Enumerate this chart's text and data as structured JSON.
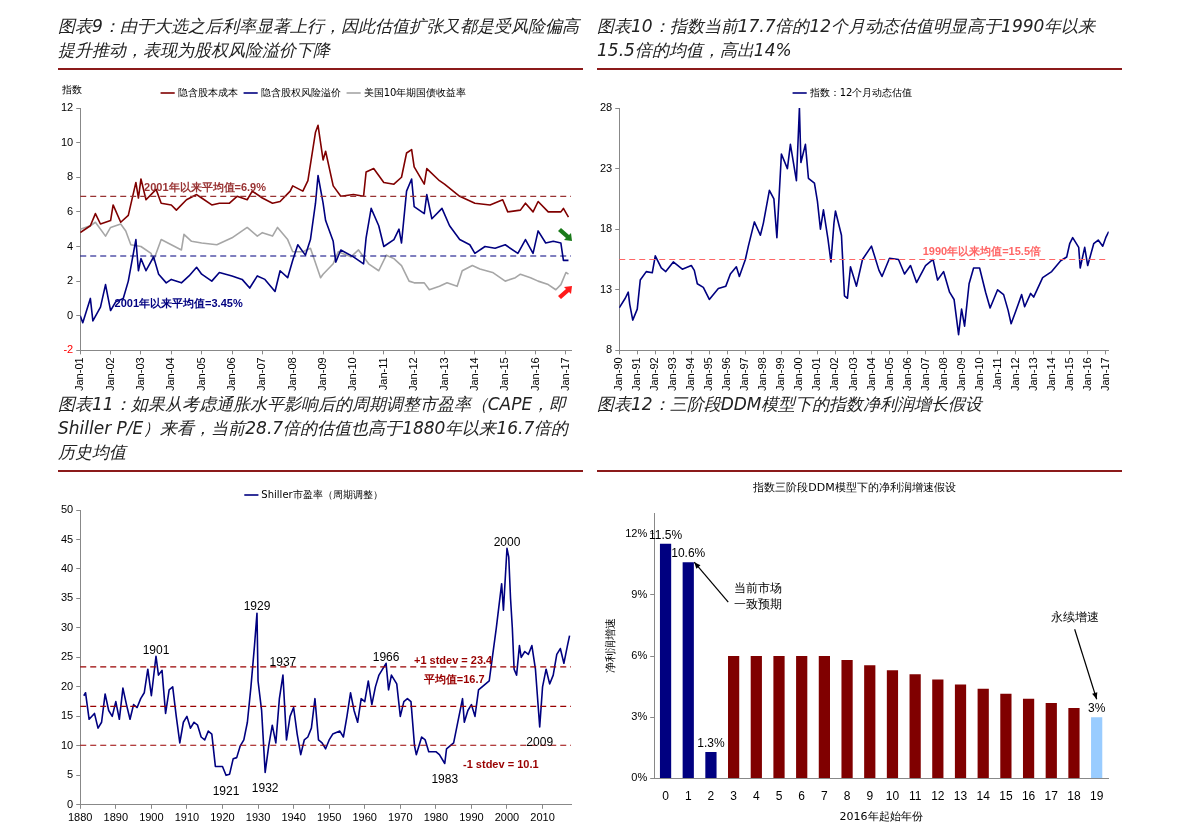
{
  "chart_data": [
    {
      "type": "line",
      "title": "图表9：由于大选之后利率显著上行，因此估值扩张又都是受风险偏高提升推动，表现为股权风险溢价下降",
      "ylabel": "指数",
      "legend": "top",
      "marker": "none",
      "xlim": [
        "2001-01",
        "2017-03"
      ],
      "xticks": [
        {
          "value": "2001-01",
          "label": "Jan-01"
        },
        {
          "value": "2002-01",
          "label": "Jan-02"
        },
        {
          "value": "2003-01",
          "label": "Jan-03"
        },
        {
          "value": "2004-01",
          "label": "Jan-04"
        },
        {
          "value": "2005-01",
          "label": "Jan-05"
        },
        {
          "value": "2006-01",
          "label": "Jan-06"
        },
        {
          "value": "2007-01",
          "label": "Jan-07"
        },
        {
          "value": "2008-01",
          "label": "Jan-08"
        },
        {
          "value": "2009-01",
          "label": "Jan-09"
        },
        {
          "value": "2010-01",
          "label": "Jan-10"
        },
        {
          "value": "2011-01",
          "label": "Jan-11"
        },
        {
          "value": "2012-01",
          "label": "Jan-12"
        },
        {
          "value": "2013-01",
          "label": "Jan-13"
        },
        {
          "value": "2014-01",
          "label": "Jan-14"
        },
        {
          "value": "2015-01",
          "label": "Jan-15"
        },
        {
          "value": "2016-01",
          "label": "Jan-16"
        },
        {
          "value": "2017-01",
          "label": "Jan-17"
        }
      ],
      "ylim": [
        -2,
        12
      ],
      "yticks": [
        -2,
        0,
        2,
        4,
        6,
        8,
        10,
        12
      ],
      "ref_lines": [
        {
          "axis": "y",
          "value": 6.9,
          "label": "2001年以来平均值=6.9%",
          "color": "#993333",
          "line_style": "dashed"
        },
        {
          "axis": "y",
          "value": 3.45,
          "label": "2001年以来平均值=3.45%",
          "color": "#000080",
          "line_style": "dashed"
        }
      ],
      "series": [
        {
          "name": "隐含股本成本",
          "color": "#800000",
          "x": [
            "2001-01",
            "2001-05",
            "2001-07",
            "2001-09",
            "2002-01",
            "2002-02",
            "2002-05",
            "2002-08",
            "2002-11",
            "2002-12",
            "2003-01",
            "2003-03",
            "2003-07",
            "2003-09",
            "2004-01",
            "2004-03",
            "2004-07",
            "2004-11",
            "2005-01",
            "2005-05",
            "2005-08",
            "2005-12",
            "2006-03",
            "2006-07",
            "2006-09",
            "2007-01",
            "2007-05",
            "2007-08",
            "2007-12",
            "2008-01",
            "2008-05",
            "2008-07",
            "2008-10",
            "2008-11",
            "2009-01",
            "2009-02",
            "2009-05",
            "2009-08",
            "2010-01",
            "2010-05",
            "2010-06",
            "2010-09",
            "2011-01",
            "2011-05",
            "2011-08",
            "2011-10",
            "2011-12",
            "2012-01",
            "2012-05",
            "2012-06",
            "2012-11",
            "2013-01",
            "2013-07",
            "2014-01",
            "2014-07",
            "2014-12",
            "2015-02",
            "2015-07",
            "2015-09",
            "2015-12",
            "2016-02",
            "2016-06",
            "2016-11",
            "2016-12",
            "2017-02"
          ],
          "values": [
            4.8,
            5.2,
            5.9,
            5.3,
            5.5,
            6.4,
            5.4,
            5.8,
            7.7,
            6.8,
            7.9,
            6.7,
            7.3,
            6.5,
            6.4,
            6.1,
            6.7,
            7.0,
            6.8,
            6.4,
            6.5,
            6.5,
            6.9,
            6.7,
            7.2,
            6.8,
            6.5,
            6.6,
            7.2,
            7.5,
            7.2,
            7.8,
            10.6,
            11.0,
            9.0,
            9.5,
            7.5,
            6.9,
            7.0,
            6.9,
            8.3,
            8.5,
            7.7,
            7.6,
            8.0,
            9.4,
            9.6,
            8.6,
            7.6,
            8.5,
            7.8,
            7.6,
            6.9,
            6.5,
            6.4,
            6.7,
            6.0,
            6.1,
            6.5,
            6.0,
            6.6,
            6.0,
            6.0,
            6.2,
            5.7
          ]
        },
        {
          "name": "隐含股权风险溢价",
          "color": "#000080",
          "x": [
            "2001-01",
            "2001-02",
            "2001-05",
            "2001-06",
            "2001-09",
            "2001-11",
            "2002-01",
            "2002-03",
            "2002-06",
            "2002-08",
            "2002-11",
            "2002-12",
            "2003-01",
            "2003-03",
            "2003-06",
            "2003-08",
            "2003-11",
            "2004-01",
            "2004-05",
            "2004-08",
            "2004-11",
            "2005-01",
            "2005-05",
            "2005-08",
            "2006-01",
            "2006-05",
            "2006-08",
            "2006-11",
            "2007-02",
            "2007-06",
            "2007-08",
            "2007-11",
            "2008-01",
            "2008-03",
            "2008-06",
            "2008-08",
            "2008-10",
            "2008-11",
            "2009-01",
            "2009-02",
            "2009-05",
            "2009-06",
            "2009-08",
            "2010-01",
            "2010-05",
            "2010-06",
            "2010-08",
            "2010-11",
            "2011-01",
            "2011-05",
            "2011-07",
            "2011-08",
            "2011-10",
            "2011-12",
            "2012-01",
            "2012-05",
            "2012-06",
            "2012-08",
            "2012-12",
            "2013-03",
            "2013-07",
            "2013-11",
            "2014-01",
            "2014-05",
            "2014-09",
            "2015-01",
            "2015-06",
            "2015-09",
            "2015-12",
            "2016-02",
            "2016-05",
            "2016-08",
            "2016-11",
            "2016-12",
            "2017-02"
          ],
          "values": [
            0,
            -0.4,
            1.0,
            -0.3,
            0.5,
            1.8,
            0.3,
            0.8,
            1.0,
            2.0,
            4.4,
            2.6,
            3.3,
            2.6,
            3.4,
            2.4,
            1.9,
            2.1,
            1.9,
            2.3,
            2.8,
            2.4,
            2.0,
            2.5,
            2.3,
            2.1,
            1.6,
            2.3,
            2.1,
            1.4,
            2.6,
            2.2,
            3.2,
            4.1,
            3.5,
            4.4,
            6.5,
            8.1,
            6.5,
            5.5,
            4.3,
            3.1,
            3.8,
            3.4,
            3.0,
            4.5,
            6.2,
            5.2,
            4.0,
            4.4,
            5.0,
            4.2,
            7.2,
            7.9,
            6.3,
            5.9,
            7.0,
            5.6,
            6.2,
            5.2,
            4.4,
            4.1,
            3.6,
            4.0,
            3.9,
            4.1,
            3.6,
            4.4,
            3.6,
            4.9,
            4.2,
            4.3,
            4.2,
            3.2,
            3.2
          ]
        },
        {
          "name": "美国10年期国债收益率",
          "color": "#a6a6a6",
          "x": [
            "2001-01",
            "2001-05",
            "2001-07",
            "2001-11",
            "2002-01",
            "2002-05",
            "2002-07",
            "2002-09",
            "2003-01",
            "2003-05",
            "2003-06",
            "2003-09",
            "2004-01",
            "2004-05",
            "2004-06",
            "2004-09",
            "2005-01",
            "2005-07",
            "2006-01",
            "2006-07",
            "2006-11",
            "2007-01",
            "2007-05",
            "2007-07",
            "2007-11",
            "2008-01",
            "2008-05",
            "2008-08",
            "2008-12",
            "2009-01",
            "2009-05",
            "2009-07",
            "2009-12",
            "2010-03",
            "2010-07",
            "2010-11",
            "2011-02",
            "2011-05",
            "2011-08",
            "2011-11",
            "2012-01",
            "2012-05",
            "2012-07",
            "2012-11",
            "2013-02",
            "2013-06",
            "2013-08",
            "2013-12",
            "2014-03",
            "2014-08",
            "2015-01",
            "2015-05",
            "2015-07",
            "2015-11",
            "2016-02",
            "2016-06",
            "2016-09",
            "2016-11",
            "2017-01",
            "2017-02"
          ],
          "values": [
            5.0,
            5.2,
            5.4,
            4.6,
            5.1,
            5.3,
            4.9,
            4.1,
            4.0,
            3.6,
            3.2,
            4.4,
            4.1,
            3.8,
            4.7,
            4.3,
            4.2,
            4.1,
            4.5,
            5.1,
            4.6,
            4.8,
            4.6,
            5.1,
            4.4,
            3.7,
            3.7,
            3.9,
            2.2,
            2.4,
            3.0,
            3.7,
            3.4,
            3.8,
            3.0,
            2.6,
            3.5,
            3.3,
            2.9,
            2.0,
            1.9,
            1.9,
            1.5,
            1.7,
            1.9,
            1.7,
            2.6,
            2.9,
            2.7,
            2.5,
            2.0,
            2.2,
            2.4,
            2.2,
            2.0,
            1.8,
            1.5,
            1.8,
            2.5,
            2.4
          ]
        }
      ]
    },
    {
      "type": "line",
      "title": "图表10：指数当前17.7倍的12个月动态估值明显高于1990年以来15.5倍的均值，高出14%",
      "legend": "top",
      "marker": "none",
      "xlim": [
        "1990-01",
        "2017-03"
      ],
      "xticks": [
        {
          "value": "1990-01",
          "label": "Jan-90"
        },
        {
          "value": "1991-01",
          "label": "Jan-91"
        },
        {
          "value": "1992-01",
          "label": "Jan-92"
        },
        {
          "value": "1993-01",
          "label": "Jan-93"
        },
        {
          "value": "1994-01",
          "label": "Jan-94"
        },
        {
          "value": "1995-01",
          "label": "Jan-95"
        },
        {
          "value": "1996-01",
          "label": "Jan-96"
        },
        {
          "value": "1997-01",
          "label": "Jan-97"
        },
        {
          "value": "1998-01",
          "label": "Jan-98"
        },
        {
          "value": "1999-01",
          "label": "Jan-99"
        },
        {
          "value": "2000-01",
          "label": "Jan-00"
        },
        {
          "value": "2001-01",
          "label": "Jan-01"
        },
        {
          "value": "2002-01",
          "label": "Jan-02"
        },
        {
          "value": "2003-01",
          "label": "Jan-03"
        },
        {
          "value": "2004-01",
          "label": "Jan-04"
        },
        {
          "value": "2005-01",
          "label": "Jan-05"
        },
        {
          "value": "2006-01",
          "label": "Jan-06"
        },
        {
          "value": "2007-01",
          "label": "Jan-07"
        },
        {
          "value": "2008-01",
          "label": "Jan-08"
        },
        {
          "value": "2009-01",
          "label": "Jan-09"
        },
        {
          "value": "2010-01",
          "label": "Jan-10"
        },
        {
          "value": "2011-01",
          "label": "Jan-11"
        },
        {
          "value": "2012-01",
          "label": "Jan-12"
        },
        {
          "value": "2013-01",
          "label": "Jan-13"
        },
        {
          "value": "2014-01",
          "label": "Jan-14"
        },
        {
          "value": "2015-01",
          "label": "Jan-15"
        },
        {
          "value": "2016-01",
          "label": "Jan-16"
        },
        {
          "value": "2017-01",
          "label": "Jan-17"
        }
      ],
      "ylim": [
        8,
        28
      ],
      "yticks": [
        8,
        13,
        18,
        23,
        28
      ],
      "ref_lines": [
        {
          "axis": "y",
          "value": 15.5,
          "label": "1990年以来均值=15.5倍",
          "color": "#ff6666",
          "line_style": "dashed"
        }
      ],
      "series": [
        {
          "name": "指数：12个月动态估值",
          "color": "#000080",
          "x": [
            "1990-01",
            "1990-05",
            "1990-07",
            "1990-08",
            "1990-10",
            "1991-01",
            "1991-03",
            "1991-07",
            "1991-11",
            "1992-01",
            "1992-05",
            "1992-08",
            "1993-01",
            "1993-07",
            "1994-01",
            "1994-03",
            "1994-05",
            "1994-09",
            "1995-01",
            "1995-07",
            "1995-12",
            "1996-03",
            "1996-07",
            "1996-09",
            "1997-01",
            "1997-03",
            "1997-07",
            "1997-11",
            "1998-01",
            "1998-05",
            "1998-08",
            "1998-10",
            "1999-01",
            "1999-05",
            "1999-07",
            "1999-11",
            "2000-01",
            "2000-02",
            "2000-05",
            "2000-07",
            "2000-11",
            "2001-01",
            "2001-03",
            "2001-05",
            "2001-08",
            "2001-10",
            "2001-12",
            "2002-01",
            "2002-05",
            "2002-07",
            "2002-09",
            "2002-11",
            "2003-03",
            "2003-07",
            "2004-01",
            "2004-06",
            "2004-08",
            "2005-01",
            "2005-07",
            "2005-11",
            "2006-03",
            "2006-07",
            "2007-01",
            "2007-06",
            "2007-09",
            "2008-01",
            "2008-05",
            "2008-08",
            "2008-11",
            "2009-01",
            "2009-03",
            "2009-06",
            "2009-09",
            "2010-01",
            "2010-05",
            "2010-08",
            "2011-01",
            "2011-05",
            "2011-08",
            "2011-10",
            "2012-01",
            "2012-05",
            "2012-07",
            "2012-11",
            "2013-01",
            "2013-07",
            "2014-01",
            "2014-07",
            "2014-11",
            "2015-01",
            "2015-03",
            "2015-07",
            "2015-08",
            "2015-11",
            "2016-01",
            "2016-05",
            "2016-08",
            "2016-11",
            "2017-01",
            "2017-03"
          ],
          "values": [
            11.5,
            12.3,
            12.8,
            11.8,
            10.5,
            11.4,
            13.8,
            14.5,
            14.4,
            15.8,
            14.8,
            14.5,
            15.3,
            14.7,
            15.0,
            14.6,
            13.5,
            13.2,
            12.2,
            13.1,
            13.3,
            14.3,
            14.9,
            14.1,
            15.5,
            16.6,
            18.6,
            17.5,
            18.5,
            21.2,
            20.5,
            17.3,
            24.2,
            23.0,
            25.0,
            22.0,
            28.0,
            23.5,
            25.0,
            22.2,
            21.8,
            20.3,
            18.0,
            19.6,
            17.2,
            15.3,
            18.5,
            19.5,
            17.5,
            12.5,
            12.3,
            14.9,
            13.3,
            15.5,
            16.6,
            14.6,
            14.1,
            15.6,
            15.5,
            14.3,
            15.0,
            13.6,
            15.0,
            15.5,
            13.8,
            14.5,
            12.8,
            12.2,
            9.3,
            11.4,
            10.0,
            13.5,
            14.8,
            14.8,
            12.8,
            11.5,
            13.0,
            12.6,
            11.3,
            10.2,
            11.2,
            12.6,
            11.6,
            12.7,
            12.4,
            14.0,
            14.5,
            15.4,
            15.7,
            16.8,
            17.3,
            16.5,
            14.8,
            16.5,
            15.0,
            16.8,
            17.1,
            16.6,
            17.3,
            17.8
          ]
        }
      ]
    },
    {
      "type": "line",
      "title": "图表11：如果从考虑通胀水平影响后的周期调整市盈率（CAPE，即Shiller P/E）来看，当前28.7倍的估值也高于1880年以来16.7倍的历史均值",
      "legend": "top",
      "marker": "none",
      "xlim": [
        1880,
        2018
      ],
      "xticks": [
        1880,
        1890,
        1900,
        1910,
        1920,
        1930,
        1940,
        1950,
        1960,
        1970,
        1980,
        1990,
        2000,
        2010
      ],
      "ylim": [
        0,
        50
      ],
      "yticks": [
        0,
        5,
        10,
        15,
        20,
        25,
        30,
        35,
        40,
        45,
        50
      ],
      "ref_lines": [
        {
          "axis": "y",
          "value": 23.4,
          "label": "+1 stdev = 23.4",
          "color": "#990000",
          "line_style": "dashed"
        },
        {
          "axis": "y",
          "value": 16.7,
          "label": "平均值=16.7",
          "color": "#990000",
          "line_style": "dashed"
        },
        {
          "axis": "y",
          "value": 10.1,
          "label": "-1 stdev = 10.1",
          "color": "#990000",
          "line_style": "dashed"
        }
      ],
      "annotations": [
        {
          "text": "1901",
          "x": 1901.3,
          "y": 25.2
        },
        {
          "text": "1921",
          "x": 1921,
          "y": 5
        },
        {
          "text": "1929",
          "x": 1929.7,
          "y": 32.5
        },
        {
          "text": "1932",
          "x": 1932,
          "y": 5.5
        },
        {
          "text": "1937",
          "x": 1937,
          "y": 22
        },
        {
          "text": "1966",
          "x": 1966,
          "y": 24
        },
        {
          "text": "1983",
          "x": 1982.5,
          "y": 7
        },
        {
          "text": "2000",
          "x": 2000,
          "y": 43.5
        },
        {
          "text": "2009",
          "x": 2009.2,
          "y": 13.2
        }
      ],
      "series": [
        {
          "name": "Shiller市盈率（周期调整）",
          "color": "#000080",
          "x": [
            1881,
            1881.5,
            1882.5,
            1884,
            1885,
            1886,
            1887,
            1888,
            1889,
            1890,
            1891,
            1892,
            1893,
            1894,
            1895,
            1896,
            1897,
            1898,
            1899,
            1900,
            1901.3,
            1902,
            1903,
            1904,
            1905,
            1906,
            1907,
            1908,
            1909,
            1910,
            1911,
            1912,
            1913,
            1914,
            1915,
            1916,
            1917,
            1918,
            1919,
            1920,
            1921,
            1922,
            1923,
            1924,
            1925,
            1926,
            1927,
            1928,
            1929,
            1929.7,
            1930,
            1931,
            1932,
            1933,
            1934,
            1935,
            1936,
            1937,
            1938,
            1939,
            1940,
            1941,
            1942,
            1943,
            1944,
            1945,
            1946,
            1947,
            1948,
            1949,
            1950,
            1951,
            1953,
            1954,
            1955,
            1956,
            1957,
            1958,
            1959,
            1960,
            1961,
            1962,
            1963,
            1964,
            1966,
            1966.7,
            1967.5,
            1969,
            1970,
            1971,
            1972,
            1973,
            1974,
            1974.5,
            1976,
            1977,
            1978,
            1980,
            1981,
            1982.5,
            1983,
            1984,
            1985,
            1986,
            1987.5,
            1988,
            1989,
            1990,
            1991,
            1992,
            1994,
            1995,
            1996,
            1997,
            1998.5,
            1999,
            2000,
            2000.5,
            2001,
            2001.5,
            2002,
            2002.7,
            2003.5,
            2004,
            2005,
            2006,
            2007,
            2008,
            2009.2,
            2010,
            2011,
            2012,
            2013,
            2014,
            2015,
            2016,
            2017,
            2017.6
          ],
          "values": [
            18.5,
            19,
            14.5,
            15.5,
            13,
            14,
            18.8,
            16,
            15,
            17.5,
            14.5,
            19.8,
            17,
            14.5,
            17,
            16.5,
            18,
            19,
            23,
            18.5,
            25.2,
            22,
            22.8,
            15.5,
            19.5,
            20,
            15,
            10.5,
            14,
            15,
            13,
            14,
            13.5,
            11.5,
            11,
            12.5,
            12,
            6.5,
            6.5,
            6.5,
            5,
            5.2,
            7.8,
            8,
            10,
            11,
            14,
            20,
            27,
            32.5,
            21,
            16,
            5.5,
            10,
            13.5,
            10.5,
            18,
            22,
            11,
            15,
            16.5,
            12,
            8.5,
            11,
            11.5,
            13,
            18,
            11,
            10.5,
            9.5,
            11,
            12,
            12.5,
            11.5,
            15,
            19,
            16,
            14,
            18,
            17.5,
            21,
            17,
            20,
            22,
            24,
            19.5,
            22,
            20.5,
            15,
            17.5,
            18,
            17.5,
            10,
            8.5,
            11.5,
            11,
            9,
            9,
            8.5,
            7,
            9.5,
            10,
            10.5,
            13.5,
            18,
            14,
            16,
            17,
            15,
            19.5,
            20.5,
            21,
            25.5,
            30,
            37.5,
            33,
            43.5,
            42,
            35,
            30,
            23,
            22,
            27,
            25,
            26,
            25.5,
            27,
            23,
            13.2,
            20,
            23,
            20.5,
            22,
            25.5,
            26.5,
            24,
            27,
            28.7
          ]
        }
      ]
    },
    {
      "type": "bar",
      "title": "图表12：三阶段DDM模型下的指数净利润增长假设",
      "subtitle": "指数三阶段DDM模型下的净利润增速假设",
      "xlabel": "2016年起始年份",
      "ylabel": "净利润增速",
      "categories": [
        "0",
        "1",
        "2",
        "3",
        "4",
        "5",
        "6",
        "7",
        "8",
        "9",
        "10",
        "11",
        "12",
        "13",
        "14",
        "15",
        "16",
        "17",
        "18",
        "19"
      ],
      "values": [
        11.5,
        10.6,
        1.3,
        6,
        6,
        6,
        6,
        6,
        5.8,
        5.55,
        5.3,
        5.1,
        4.85,
        4.6,
        4.4,
        4.15,
        3.9,
        3.7,
        3.45,
        3
      ],
      "colors": [
        "#000080",
        "#000080",
        "#000080",
        "#800000",
        "#800000",
        "#800000",
        "#800000",
        "#800000",
        "#800000",
        "#800000",
        "#800000",
        "#800000",
        "#800000",
        "#800000",
        "#800000",
        "#800000",
        "#800000",
        "#800000",
        "#800000",
        "#99ccff"
      ],
      "value_labels": [
        "11.5%",
        "10.6%",
        "1.3%",
        null,
        null,
        null,
        null,
        null,
        null,
        null,
        null,
        null,
        null,
        null,
        null,
        null,
        null,
        null,
        null,
        "3%"
      ],
      "ylim": [
        0,
        13
      ],
      "yticks": [
        {
          "value": 0,
          "label": "0%"
        },
        {
          "value": 3,
          "label": "3%"
        },
        {
          "value": 6,
          "label": "6%"
        },
        {
          "value": 9,
          "label": "9%"
        },
        {
          "value": 12,
          "label": "12%"
        }
      ],
      "annotations": [
        {
          "text": "当前市场一致预期",
          "x": "1",
          "y": 10.6
        },
        "永续增速"
      ]
    }
  ]
}
